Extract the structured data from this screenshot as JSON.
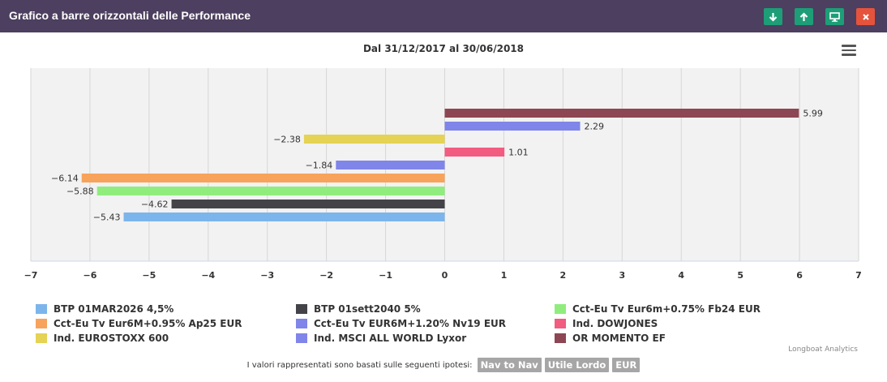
{
  "window": {
    "title": "Grafico a barre orizzontali delle Performance",
    "buttons": [
      {
        "name": "download-icon",
        "glyph": "↓"
      },
      {
        "name": "upload-icon",
        "glyph": "↑"
      },
      {
        "name": "monitor-icon",
        "glyph": "▭"
      },
      {
        "name": "close-icon",
        "glyph": "✕"
      }
    ]
  },
  "colors": {
    "titlebar": "#4d3f5f",
    "plot_bg": "#f2f2f2",
    "button_green": "#1d9e77",
    "button_red": "#e5533c"
  },
  "chart_data": {
    "type": "bar",
    "orientation": "horizontal",
    "subtitle": "Dal 31/12/2017 al 30/06/2018",
    "xlim": [
      -7,
      7
    ],
    "x_ticks": [
      "−7",
      "−6",
      "−5",
      "−4",
      "−3",
      "−2",
      "−1",
      "0",
      "1",
      "2",
      "3",
      "4",
      "5",
      "6",
      "7"
    ],
    "grid": true,
    "legend_position": "bottom",
    "series": [
      {
        "name": "BTP 01MAR2026 4,5%",
        "value": -5.43,
        "label": "−5.43",
        "color": "#7cb5ec"
      },
      {
        "name": "BTP 01sett2040 5%",
        "value": -4.62,
        "label": "−4.62",
        "color": "#434348"
      },
      {
        "name": "Cct-Eu Tv Eur6m+0.75% Fb24 EUR",
        "value": -5.88,
        "label": "−5.88",
        "color": "#90ed7d"
      },
      {
        "name": "Cct-Eu Tv Eur6M+0.95% Ap25 EUR",
        "value": -6.14,
        "label": "−6.14",
        "color": "#f7a35c"
      },
      {
        "name": "Cct-Eu Tv EUR6M+1.20% Nv19 EUR",
        "value": -1.84,
        "label": "−1.84",
        "color": "#8085e9"
      },
      {
        "name": "Ind. DOWJONES",
        "value": 1.01,
        "label": "1.01",
        "color": "#f15c80"
      },
      {
        "name": "Ind. EUROSTOXX 600",
        "value": -2.38,
        "label": "−2.38",
        "color": "#e4d354"
      },
      {
        "name": "Ind. MSCI ALL WORLD Lyxor",
        "value": 2.29,
        "label": "2.29",
        "color": "#8085e9"
      },
      {
        "name": "OR MOMENTO EF",
        "value": 5.99,
        "label": "5.99",
        "color": "#8d4653"
      }
    ]
  },
  "credits": "Longboat Analytics",
  "footer": {
    "text": "I valori rappresentati sono basati sulle seguenti ipotesi:",
    "tags": [
      "Nav to Nav",
      "Utile Lordo",
      "EUR"
    ]
  }
}
